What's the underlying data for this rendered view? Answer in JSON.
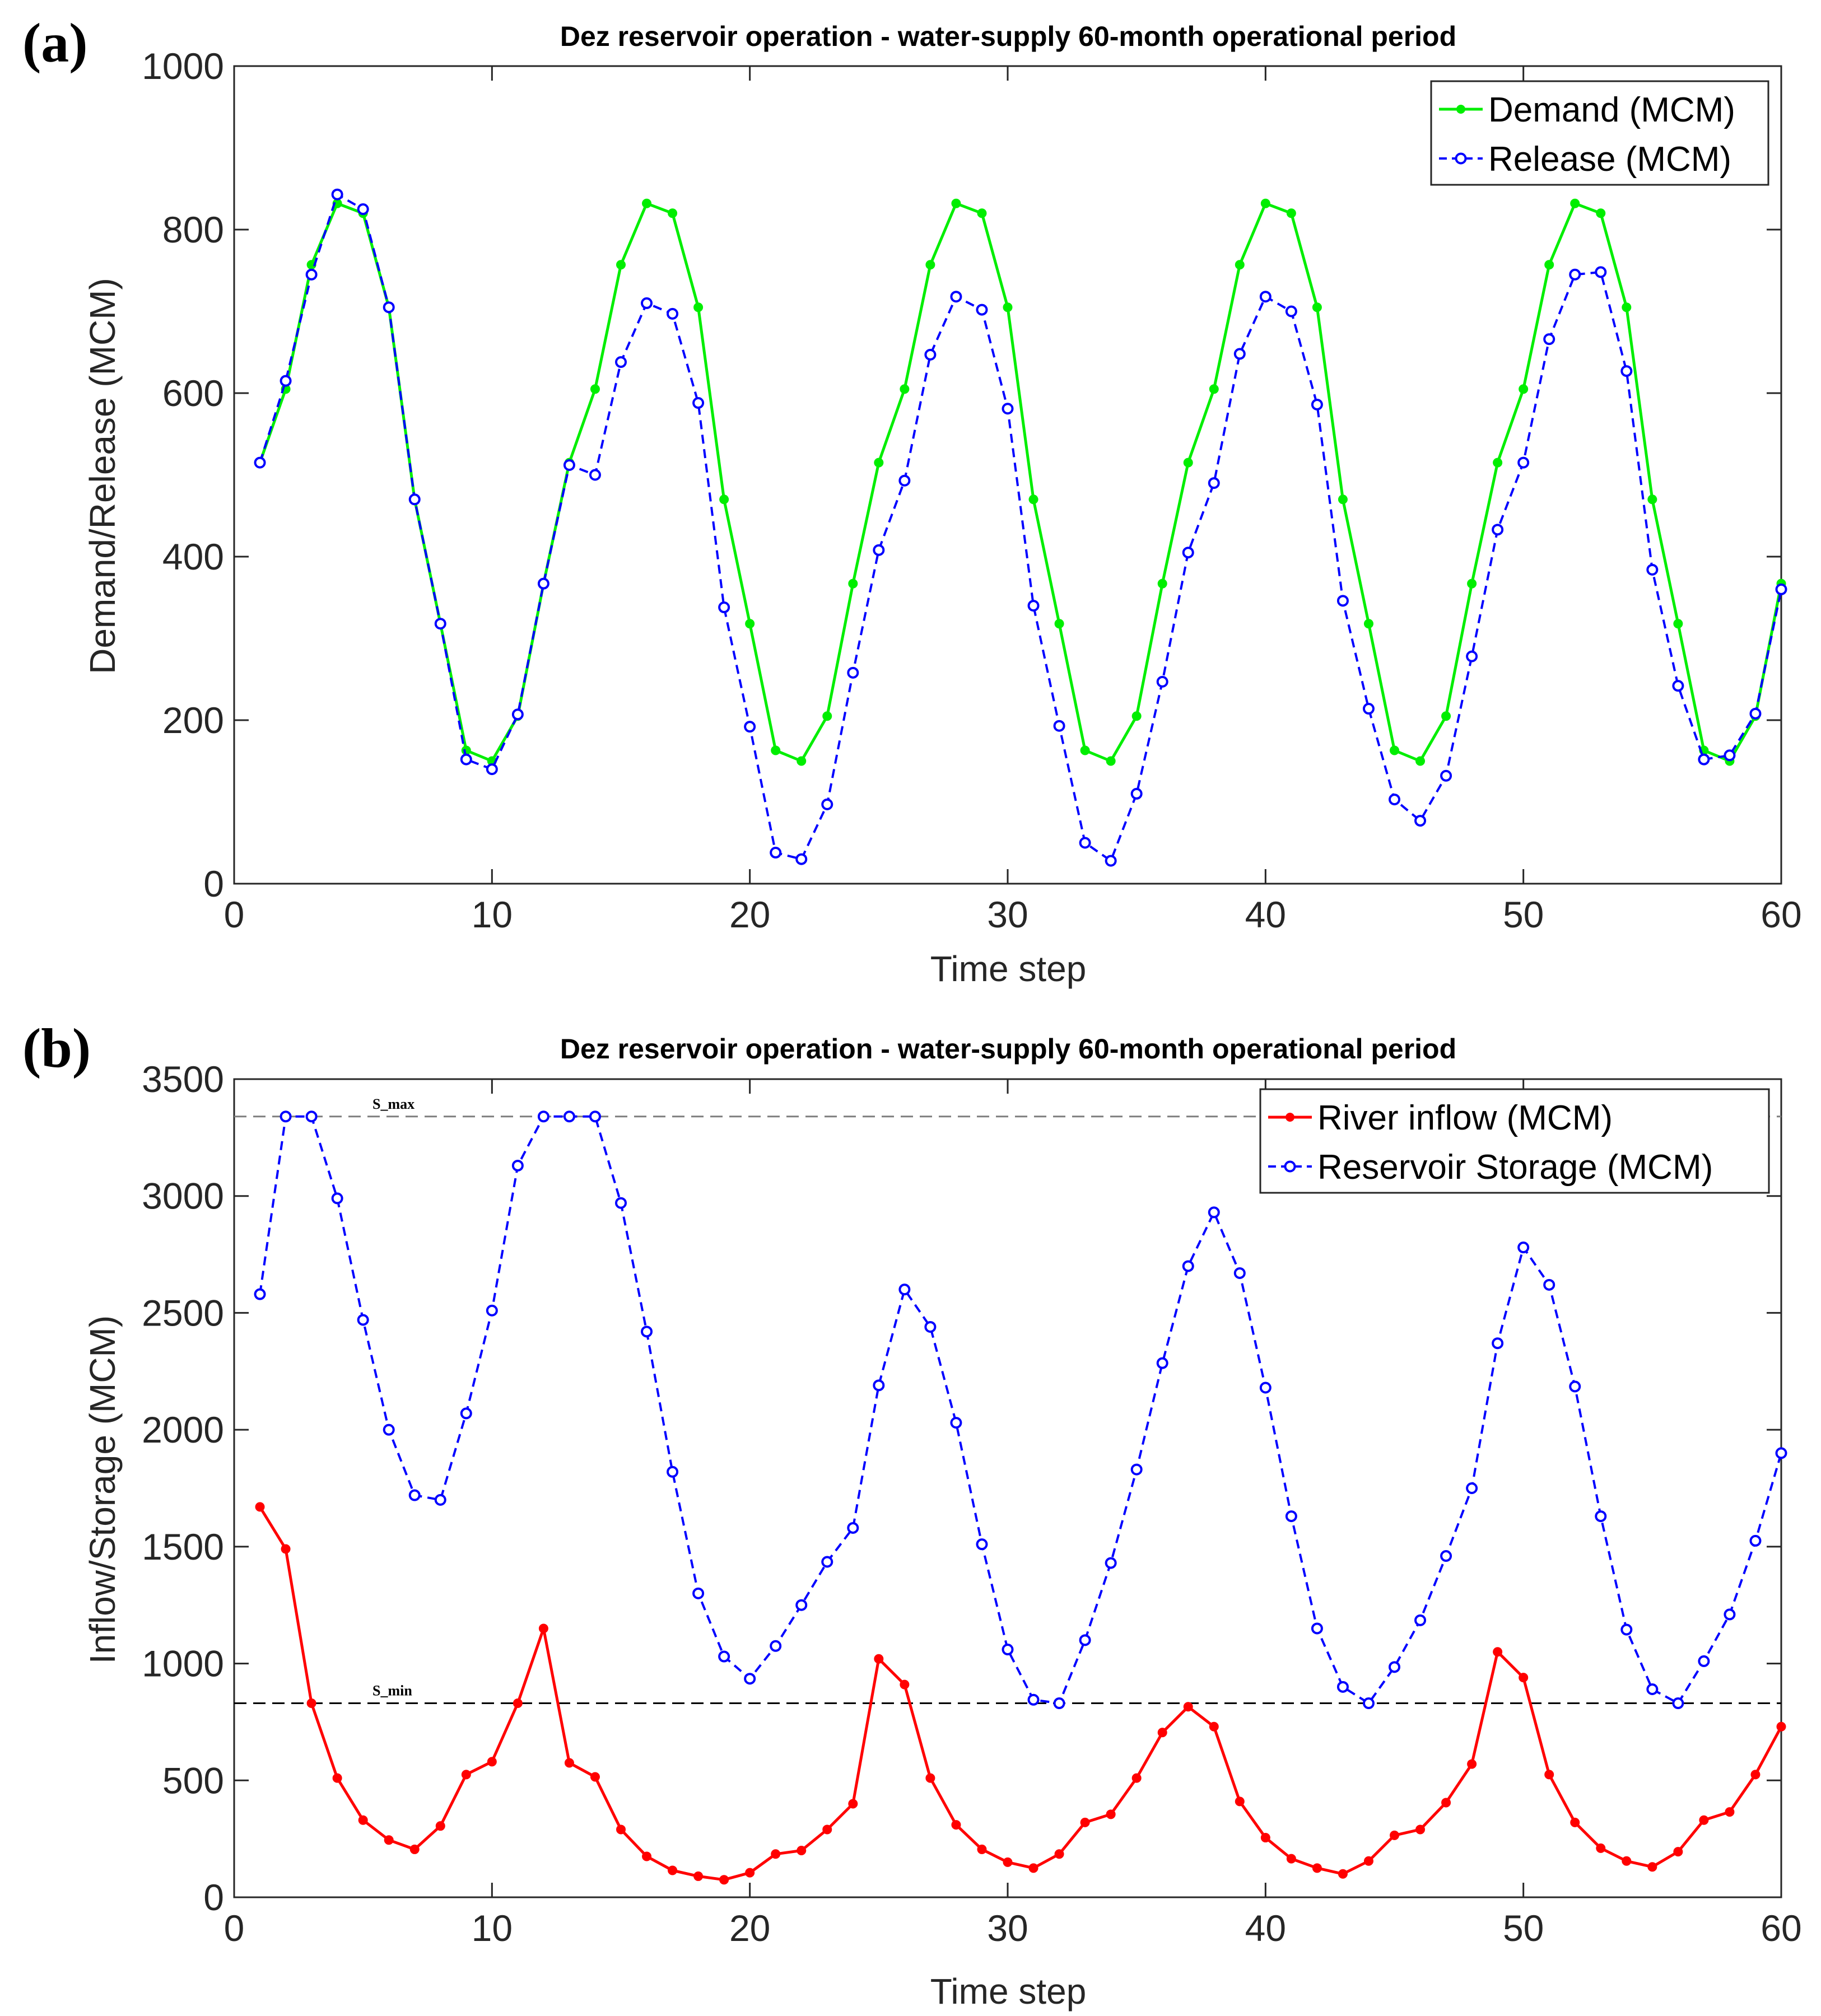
{
  "colors": {
    "demand": "#00ee00",
    "release": "#0000ff",
    "inflow": "#ff0000",
    "storage": "#0000ff",
    "axis": "#262626",
    "ref_line": "#7f7f7f"
  },
  "chart_data": [
    {
      "panel_label": "(a)",
      "type": "line",
      "title": "Dez reservoir operation - water-supply 60-month operational period",
      "xlabel": "Time step",
      "ylabel": "Demand/Release (MCM)",
      "xlim": [
        0,
        60
      ],
      "ylim": [
        0,
        1000
      ],
      "xticks": [
        0,
        10,
        20,
        30,
        40,
        50,
        60
      ],
      "yticks": [
        0,
        200,
        400,
        600,
        800,
        1000
      ],
      "legend_position": "top-right",
      "x": [
        1,
        2,
        3,
        4,
        5,
        6,
        7,
        8,
        9,
        10,
        11,
        12,
        13,
        14,
        15,
        16,
        17,
        18,
        19,
        20,
        21,
        22,
        23,
        24,
        25,
        26,
        27,
        28,
        29,
        30,
        31,
        32,
        33,
        34,
        35,
        36,
        37,
        38,
        39,
        40,
        41,
        42,
        43,
        44,
        45,
        46,
        47,
        48,
        49,
        50,
        51,
        52,
        53,
        54,
        55,
        56,
        57,
        58,
        59,
        60
      ],
      "series": [
        {
          "name": "Demand (MCM)",
          "style": "solid",
          "color_key": "demand",
          "values": [
            515,
            605,
            757,
            832,
            820,
            705,
            470,
            318,
            163,
            150,
            205,
            367,
            515,
            605,
            757,
            832,
            820,
            705,
            470,
            318,
            163,
            150,
            205,
            367,
            515,
            605,
            757,
            832,
            820,
            705,
            470,
            318,
            163,
            150,
            205,
            367,
            515,
            605,
            757,
            832,
            820,
            705,
            470,
            318,
            163,
            150,
            205,
            367,
            515,
            605,
            757,
            832,
            820,
            705,
            470,
            318,
            163,
            150,
            205,
            367
          ]
        },
        {
          "name": "Release (MCM)",
          "style": "dashed",
          "color_key": "release",
          "values": [
            515,
            615,
            745,
            843,
            825,
            705,
            470,
            318,
            152,
            140,
            207,
            367,
            512,
            500,
            638,
            710,
            697,
            588,
            338,
            192,
            38,
            30,
            97,
            258,
            408,
            493,
            647,
            718,
            702,
            581,
            340,
            193,
            50,
            28,
            110,
            247,
            405,
            490,
            648,
            718,
            700,
            586,
            346,
            214,
            103,
            77,
            132,
            278,
            433,
            515,
            666,
            745,
            748,
            627,
            384,
            242,
            152,
            157,
            208,
            360
          ]
        }
      ]
    },
    {
      "panel_label": "(b)",
      "type": "line",
      "title": "Dez reservoir operation - water-supply 60-month operational period",
      "xlabel": "Time step",
      "ylabel": "Inflow/Storage (MCM)",
      "xlim": [
        0,
        60
      ],
      "ylim": [
        0,
        3500
      ],
      "xticks": [
        0,
        10,
        20,
        30,
        40,
        50,
        60
      ],
      "yticks": [
        0,
        500,
        1000,
        1500,
        2000,
        2500,
        3000,
        3500
      ],
      "legend_position": "top-right",
      "reference_lines": [
        {
          "label": "S_max",
          "value": 3340
        },
        {
          "label": "S_min",
          "value": 830
        }
      ],
      "x": [
        1,
        2,
        3,
        4,
        5,
        6,
        7,
        8,
        9,
        10,
        11,
        12,
        13,
        14,
        15,
        16,
        17,
        18,
        19,
        20,
        21,
        22,
        23,
        24,
        25,
        26,
        27,
        28,
        29,
        30,
        31,
        32,
        33,
        34,
        35,
        36,
        37,
        38,
        39,
        40,
        41,
        42,
        43,
        44,
        45,
        46,
        47,
        48,
        49,
        50,
        51,
        52,
        53,
        54,
        55,
        56,
        57,
        58,
        59,
        60
      ],
      "series": [
        {
          "name": "River inflow (MCM)",
          "style": "solid",
          "color_key": "inflow",
          "values": [
            1670,
            1490,
            830,
            510,
            330,
            245,
            205,
            305,
            525,
            580,
            830,
            1150,
            575,
            515,
            290,
            175,
            115,
            90,
            75,
            105,
            185,
            200,
            290,
            400,
            1020,
            910,
            510,
            310,
            205,
            150,
            125,
            185,
            320,
            355,
            510,
            705,
            815,
            730,
            410,
            255,
            165,
            125,
            100,
            155,
            265,
            290,
            405,
            570,
            1050,
            940,
            525,
            320,
            210,
            155,
            130,
            195,
            330,
            365,
            525,
            730
          ]
        },
        {
          "name": "Reservoir Storage (MCM)",
          "style": "dashed",
          "color_key": "storage",
          "values": [
            2580,
            3340,
            3340,
            2990,
            2470,
            2000,
            1720,
            1700,
            2070,
            2510,
            3130,
            3340,
            3340,
            3340,
            2970,
            2420,
            1820,
            1300,
            1030,
            935,
            1075,
            1250,
            1435,
            1580,
            2190,
            2600,
            2440,
            2030,
            1510,
            1060,
            845,
            830,
            1100,
            1430,
            1830,
            2285,
            2700,
            2930,
            2670,
            2180,
            1630,
            1150,
            900,
            830,
            985,
            1185,
            1460,
            1750,
            2370,
            2780,
            2620,
            2185,
            1630,
            1145,
            890,
            830,
            1010,
            1210,
            1525,
            1900
          ]
        }
      ]
    }
  ]
}
